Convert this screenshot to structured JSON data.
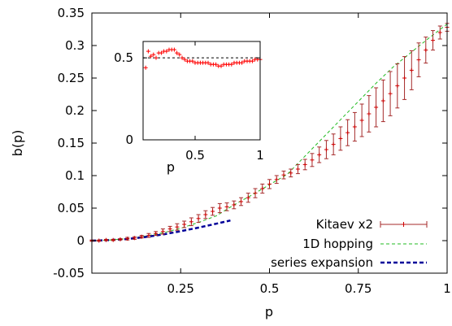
{
  "chart_data": [
    {
      "id": "main",
      "type": "line",
      "xlabel": "p",
      "ylabel": "b(p)",
      "xlim": [
        0,
        1
      ],
      "ylim": [
        -0.05,
        0.35
      ],
      "x_ticks": [
        {
          "v": 0.25,
          "label": "0.25"
        },
        {
          "v": 0.5,
          "label": "0.5"
        },
        {
          "v": 0.75,
          "label": "0.75"
        },
        {
          "v": 1.0,
          "label": "1"
        }
      ],
      "y_ticks": [
        {
          "v": -0.05,
          "label": "-0.05"
        },
        {
          "v": 0.0,
          "label": "0"
        },
        {
          "v": 0.05,
          "label": "0.05"
        },
        {
          "v": 0.1,
          "label": "0.1"
        },
        {
          "v": 0.15,
          "label": "0.15"
        },
        {
          "v": 0.2,
          "label": "0.2"
        },
        {
          "v": 0.25,
          "label": "0.25"
        },
        {
          "v": 0.3,
          "label": "0.3"
        },
        {
          "v": 0.35,
          "label": "0.35"
        }
      ],
      "legend_position": "bottom-right",
      "series": [
        {
          "name": "Kitaev x2",
          "style": "points-errorbars",
          "color": "#cc0000",
          "bar_color": "#a52a2a",
          "x": [
            0.0,
            0.02,
            0.04,
            0.06,
            0.08,
            0.1,
            0.12,
            0.14,
            0.16,
            0.18,
            0.2,
            0.22,
            0.24,
            0.26,
            0.28,
            0.3,
            0.32,
            0.34,
            0.36,
            0.38,
            0.4,
            0.42,
            0.44,
            0.46,
            0.48,
            0.5,
            0.52,
            0.54,
            0.56,
            0.58,
            0.6,
            0.62,
            0.64,
            0.66,
            0.68,
            0.7,
            0.72,
            0.74,
            0.76,
            0.78,
            0.8,
            0.82,
            0.84,
            0.86,
            0.88,
            0.9,
            0.92,
            0.94,
            0.96,
            0.98,
            1.0
          ],
          "y": [
            0.0,
            0.0,
            0.001,
            0.001,
            0.002,
            0.003,
            0.004,
            0.006,
            0.008,
            0.011,
            0.014,
            0.018,
            0.021,
            0.025,
            0.029,
            0.034,
            0.04,
            0.045,
            0.05,
            0.052,
            0.055,
            0.06,
            0.066,
            0.073,
            0.08,
            0.087,
            0.094,
            0.101,
            0.104,
            0.11,
            0.117,
            0.124,
            0.132,
            0.14,
            0.148,
            0.157,
            0.166,
            0.175,
            0.185,
            0.195,
            0.205,
            0.215,
            0.226,
            0.238,
            0.25,
            0.262,
            0.278,
            0.293,
            0.308,
            0.32,
            0.328
          ],
          "err": [
            0.001,
            0.001,
            0.001,
            0.001,
            0.001,
            0.002,
            0.002,
            0.002,
            0.003,
            0.003,
            0.004,
            0.004,
            0.005,
            0.005,
            0.006,
            0.006,
            0.006,
            0.006,
            0.007,
            0.006,
            0.006,
            0.006,
            0.007,
            0.007,
            0.007,
            0.007,
            0.006,
            0.006,
            0.006,
            0.007,
            0.008,
            0.01,
            0.012,
            0.014,
            0.016,
            0.018,
            0.02,
            0.022,
            0.025,
            0.028,
            0.03,
            0.032,
            0.034,
            0.034,
            0.033,
            0.03,
            0.026,
            0.02,
            0.015,
            0.01,
            0.006
          ]
        },
        {
          "name": "1D hopping",
          "style": "dashed-line",
          "color": "#22bb22",
          "x": [
            0.0,
            0.05,
            0.1,
            0.15,
            0.2,
            0.25,
            0.3,
            0.35,
            0.4,
            0.45,
            0.5,
            0.55,
            0.6,
            0.65,
            0.7,
            0.75,
            0.8,
            0.85,
            0.9,
            0.95,
            1.0
          ],
          "y": [
            0.0,
            0.001,
            0.003,
            0.007,
            0.012,
            0.019,
            0.028,
            0.038,
            0.055,
            0.07,
            0.086,
            0.102,
            0.13,
            0.158,
            0.186,
            0.214,
            0.242,
            0.268,
            0.29,
            0.312,
            0.333
          ]
        },
        {
          "name": "series expansion",
          "style": "dashed-line-thick",
          "color": "#000099",
          "x": [
            0.0,
            0.05,
            0.1,
            0.15,
            0.2,
            0.25,
            0.3,
            0.35,
            0.39
          ],
          "y": [
            0.0,
            0.0008,
            0.0025,
            0.0055,
            0.0095,
            0.0145,
            0.02,
            0.026,
            0.031
          ]
        }
      ]
    },
    {
      "id": "inset",
      "type": "scatter",
      "xlabel": "p",
      "xlim": [
        0.1,
        1
      ],
      "ylim": [
        0,
        0.6
      ],
      "x_ticks": [
        {
          "v": 0.5,
          "label": "0.5"
        },
        {
          "v": 1.0,
          "label": "1"
        }
      ],
      "y_ticks": [
        {
          "v": 0.0,
          "label": "0"
        },
        {
          "v": 0.5,
          "label": "0.5"
        }
      ],
      "reference_line": {
        "y": 0.5,
        "style": "dashed",
        "color": "#000000"
      },
      "series": [
        {
          "style": "points",
          "color": "#ff0000",
          "x": [
            0.12,
            0.14,
            0.16,
            0.18,
            0.2,
            0.22,
            0.24,
            0.26,
            0.28,
            0.3,
            0.32,
            0.34,
            0.36,
            0.38,
            0.4,
            0.42,
            0.44,
            0.46,
            0.48,
            0.5,
            0.52,
            0.54,
            0.56,
            0.58,
            0.6,
            0.62,
            0.64,
            0.66,
            0.68,
            0.7,
            0.72,
            0.74,
            0.76,
            0.78,
            0.8,
            0.82,
            0.84,
            0.86,
            0.88,
            0.9,
            0.92,
            0.94,
            0.96,
            0.98,
            1.0
          ],
          "y": [
            0.44,
            0.54,
            0.51,
            0.52,
            0.5,
            0.53,
            0.53,
            0.54,
            0.54,
            0.55,
            0.55,
            0.55,
            0.53,
            0.52,
            0.5,
            0.49,
            0.48,
            0.48,
            0.48,
            0.47,
            0.47,
            0.47,
            0.47,
            0.47,
            0.47,
            0.46,
            0.46,
            0.46,
            0.45,
            0.45,
            0.46,
            0.46,
            0.46,
            0.46,
            0.47,
            0.47,
            0.47,
            0.47,
            0.48,
            0.48,
            0.48,
            0.48,
            0.49,
            0.49,
            0.49
          ]
        }
      ]
    }
  ]
}
